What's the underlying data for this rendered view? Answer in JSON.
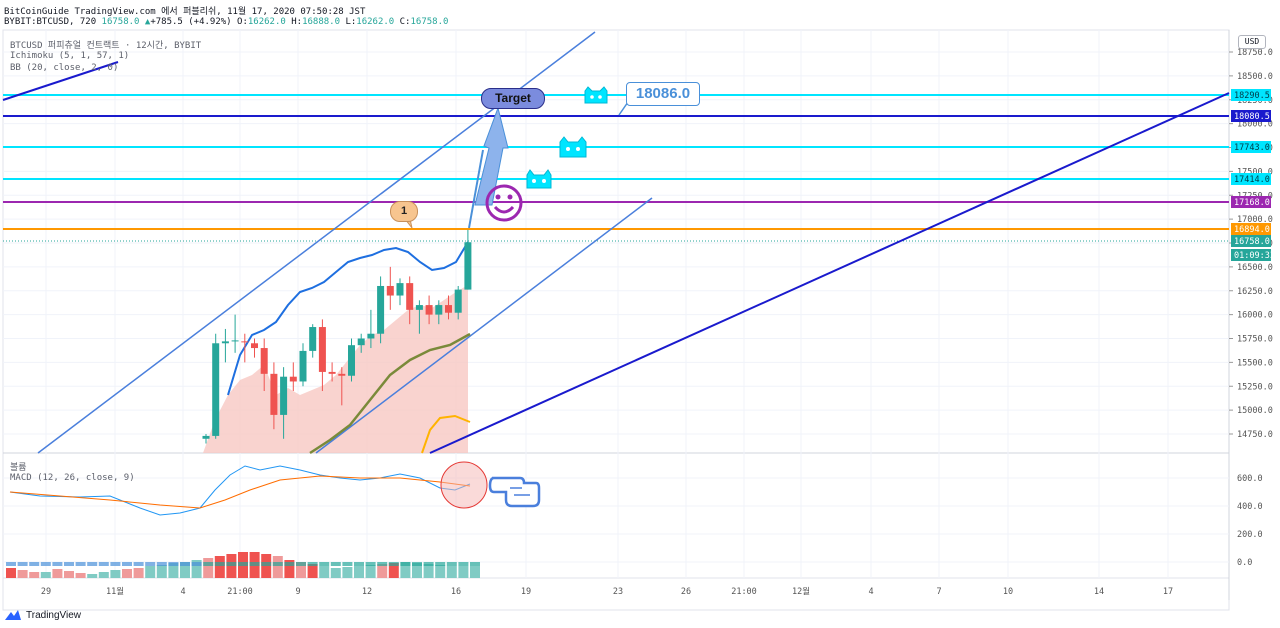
{
  "header": {
    "line1": "BitCoinGuide TradingView.com 에서 퍼블리쉬, 11월 17, 2020 07:50:28 JST",
    "symbol": "BYBIT:BTCUSD, 720",
    "last": "16758.0",
    "change": "+785.5 (+4.92%)",
    "o_label": "O:",
    "o": "16262.0",
    "h_label": "H:",
    "h": "16888.0",
    "l_label": "L:",
    "l": "16262.0",
    "c_label": "C:",
    "c": "16758.0"
  },
  "legend": {
    "title": "BTCUSD 퍼피츄얼 컨트랙트 · 12시간, BYBIT",
    "ichimoku": "Ichimoku (5, 1, 57, 1)",
    "bb": "BB (20, close, 2, 0)",
    "volume": "볼륨",
    "macd": "MACD (12, 26, close, 9)"
  },
  "currency_button": "USD",
  "annotations": {
    "target": "Target",
    "callout": "18086.0",
    "bubble": "1"
  },
  "footer": {
    "brand": "TradingView"
  },
  "colors": {
    "up": "#26a69a",
    "down": "#ef5350",
    "cyan": "#00e5ff",
    "navy": "#1a1acd",
    "purple": "#9c27b0",
    "orange": "#ff9800",
    "channel": "#4a7fdc",
    "bb": "#1e6fe0",
    "olive": "#7a8a3a",
    "ichimoku": "#ffb300"
  },
  "chart_data": {
    "type": "candlestick",
    "y_axis_ticks": [
      18750,
      18500,
      18250,
      18000,
      17750,
      17500,
      17250,
      17000,
      16750,
      16500,
      16250,
      16000,
      15750,
      15500,
      15250,
      15000,
      14750
    ],
    "x_axis_ticks": [
      "29",
      "11월",
      "4",
      "21:00",
      "9",
      "12",
      "16",
      "19",
      "23",
      "26",
      "21:00",
      "12월",
      "4",
      "7",
      "10",
      "14",
      "17"
    ],
    "price_labels": [
      {
        "text": "18290.5",
        "value": 18290.5,
        "role": "cyan-level"
      },
      {
        "text": "18080.5",
        "value": 18080.5,
        "role": "navy-level"
      },
      {
        "text": "17743.0",
        "value": 17743.0,
        "role": "cyan-level"
      },
      {
        "text": "17414.0",
        "value": 17414.0,
        "role": "cyan-level"
      },
      {
        "text": "17168.0",
        "value": 17168.0,
        "role": "purple-level"
      },
      {
        "text": "16894.0",
        "value": 16894.0,
        "role": "orange-level"
      },
      {
        "text": "16758.0",
        "value": 16758.0,
        "role": "last-price"
      },
      {
        "text": "01:09:33",
        "value": 16660.0,
        "role": "countdown"
      }
    ],
    "candles": [
      {
        "o": 14700,
        "h": 14750,
        "l": 14650,
        "c": 14730
      },
      {
        "o": 14730,
        "h": 15800,
        "l": 14700,
        "c": 15700
      },
      {
        "o": 15700,
        "h": 15850,
        "l": 15500,
        "c": 15720
      },
      {
        "o": 15720,
        "h": 16000,
        "l": 15600,
        "c": 15730
      },
      {
        "o": 15720,
        "h": 15800,
        "l": 15500,
        "c": 15710
      },
      {
        "o": 15700,
        "h": 15750,
        "l": 15550,
        "c": 15650
      },
      {
        "o": 15650,
        "h": 15750,
        "l": 15200,
        "c": 15380
      },
      {
        "o": 15380,
        "h": 15500,
        "l": 14800,
        "c": 14950
      },
      {
        "o": 14950,
        "h": 15450,
        "l": 14700,
        "c": 15350
      },
      {
        "o": 15350,
        "h": 15500,
        "l": 15200,
        "c": 15300
      },
      {
        "o": 15300,
        "h": 15700,
        "l": 15250,
        "c": 15620
      },
      {
        "o": 15620,
        "h": 15900,
        "l": 15550,
        "c": 15870
      },
      {
        "o": 15870,
        "h": 15950,
        "l": 15200,
        "c": 15400
      },
      {
        "o": 15400,
        "h": 15500,
        "l": 15300,
        "c": 15380
      },
      {
        "o": 15380,
        "h": 15450,
        "l": 15050,
        "c": 15360
      },
      {
        "o": 15360,
        "h": 15750,
        "l": 15300,
        "c": 15680
      },
      {
        "o": 15680,
        "h": 15800,
        "l": 15600,
        "c": 15750
      },
      {
        "o": 15750,
        "h": 16050,
        "l": 15650,
        "c": 15800
      },
      {
        "o": 15800,
        "h": 16400,
        "l": 15700,
        "c": 16300
      },
      {
        "o": 16300,
        "h": 16500,
        "l": 16050,
        "c": 16200
      },
      {
        "o": 16200,
        "h": 16380,
        "l": 16100,
        "c": 16330
      },
      {
        "o": 16330,
        "h": 16400,
        "l": 15900,
        "c": 16050
      },
      {
        "o": 16050,
        "h": 16150,
        "l": 15800,
        "c": 16100
      },
      {
        "o": 16100,
        "h": 16200,
        "l": 15900,
        "c": 16000
      },
      {
        "o": 16000,
        "h": 16150,
        "l": 15900,
        "c": 16100
      },
      {
        "o": 16100,
        "h": 16200,
        "l": 15950,
        "c": 16020
      },
      {
        "o": 16020,
        "h": 16300,
        "l": 15950,
        "c": 16262
      },
      {
        "o": 16262,
        "h": 16888,
        "l": 16262,
        "c": 16758
      }
    ],
    "macd_axis_ticks": [
      "600.0",
      "400.0",
      "200.0",
      "0.0"
    ]
  }
}
